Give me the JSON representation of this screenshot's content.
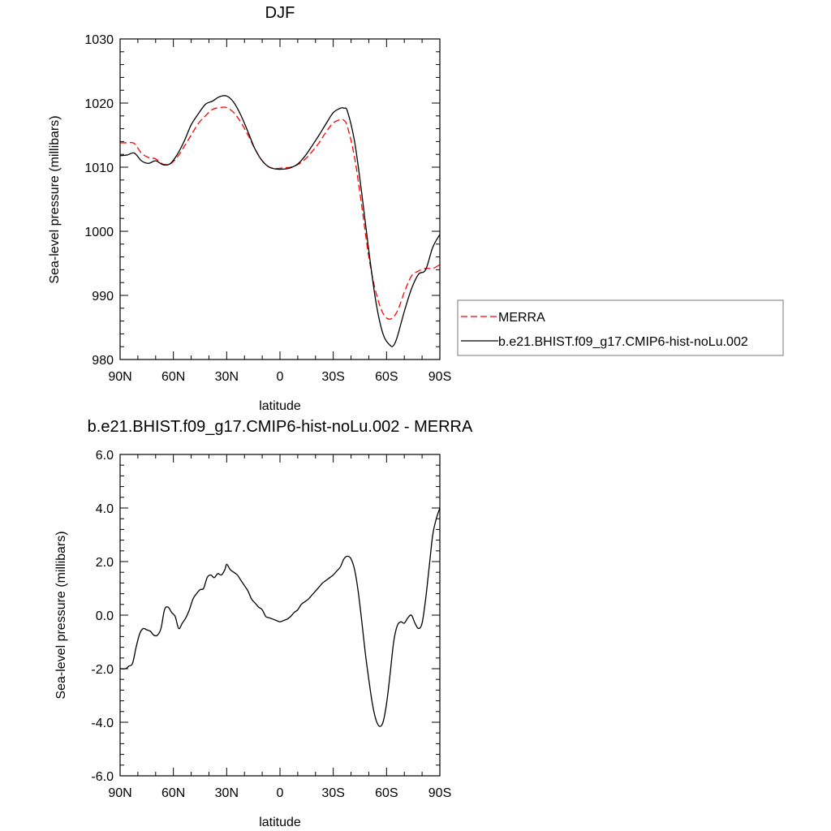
{
  "colors": {
    "model": "#000000",
    "obs": "#ff0000",
    "frame": "#000000",
    "legend_border": "#777777"
  },
  "chart_data": [
    {
      "type": "line",
      "title": "DJF",
      "xlabel": "latitude",
      "ylabel": "Sea-level pressure (millibars)",
      "xlim": [
        -90,
        90
      ],
      "ylim": [
        980,
        1030
      ],
      "x_ticks": [
        -90,
        -60,
        -30,
        0,
        30,
        60,
        90
      ],
      "x_tick_labels": [
        "90N",
        "60N",
        "30N",
        "0",
        "30S",
        "60S",
        "90S"
      ],
      "y_ticks": [
        980,
        990,
        1000,
        1010,
        1020,
        1030
      ],
      "y_tick_labels": [
        "980",
        "990",
        "1000",
        "1010",
        "1020",
        "1030"
      ],
      "grid": false,
      "legend": "right",
      "series": [
        {
          "name": "MERRA",
          "style": "dashed",
          "color": "#ff0000",
          "x": [
            -90,
            -86,
            -82,
            -78,
            -74,
            -70,
            -66,
            -62,
            -58,
            -54,
            -50,
            -46,
            -42,
            -38,
            -34,
            -30,
            -26,
            -22,
            -18,
            -14,
            -10,
            -6,
            -2,
            2,
            6,
            10,
            14,
            18,
            22,
            26,
            30,
            34,
            36,
            38,
            42,
            46,
            50,
            54,
            58,
            62,
            66,
            70,
            74,
            78,
            82,
            86,
            90
          ],
          "values": [
            1013.8,
            1013.8,
            1013.7,
            1012.2,
            1011.5,
            1011.3,
            1010.5,
            1010.5,
            1011.5,
            1013.2,
            1015.0,
            1016.8,
            1018.0,
            1019.0,
            1019.3,
            1019.3,
            1018.5,
            1017.0,
            1015.0,
            1012.8,
            1011.0,
            1010.0,
            1009.8,
            1009.9,
            1010.0,
            1010.4,
            1011.2,
            1012.4,
            1013.8,
            1015.5,
            1016.9,
            1017.4,
            1017.3,
            1016.3,
            1011.5,
            1004.0,
            996.0,
            990.5,
            987.2,
            986.3,
            987.5,
            990.5,
            993.0,
            993.8,
            994.2,
            994.2,
            994.8
          ]
        },
        {
          "name": "b.e21.BHIST.f09_g17.CMIP6-hist-noLu.002",
          "style": "solid",
          "color": "#000000",
          "x": [
            -90,
            -86,
            -82,
            -78,
            -74,
            -70,
            -66,
            -62,
            -58,
            -54,
            -50,
            -46,
            -42,
            -38,
            -34,
            -30,
            -26,
            -22,
            -18,
            -14,
            -10,
            -6,
            -2,
            2,
            6,
            10,
            14,
            18,
            22,
            26,
            30,
            34,
            36,
            38,
            42,
            46,
            50,
            54,
            58,
            62,
            64,
            66,
            70,
            74,
            78,
            82,
            86,
            90
          ],
          "values": [
            1011.8,
            1011.9,
            1012.2,
            1011.0,
            1010.6,
            1011.0,
            1010.4,
            1010.5,
            1011.9,
            1014.0,
            1016.6,
            1018.3,
            1019.8,
            1020.3,
            1021.0,
            1021.1,
            1020.1,
            1018.1,
            1015.5,
            1012.8,
            1011.0,
            1010.0,
            1009.7,
            1009.7,
            1009.9,
            1010.5,
            1011.7,
            1013.3,
            1015.0,
            1016.8,
            1018.5,
            1019.2,
            1019.2,
            1018.7,
            1014.0,
            1006.0,
            997.0,
            989.0,
            984.0,
            982.2,
            982.2,
            983.5,
            987.5,
            991.0,
            993.3,
            994.0,
            997.5,
            999.5
          ]
        }
      ]
    },
    {
      "type": "line",
      "title": "b.e21.BHIST.f09_g17.CMIP6-hist-noLu.002 - MERRA",
      "xlabel": "latitude",
      "ylabel": "Sea-level pressure (millibars)",
      "xlim": [
        -90,
        90
      ],
      "ylim": [
        -6,
        6
      ],
      "x_ticks": [
        -90,
        -60,
        -30,
        0,
        30,
        60,
        90
      ],
      "x_tick_labels": [
        "90N",
        "60N",
        "30N",
        "0",
        "30S",
        "60S",
        "90S"
      ],
      "y_ticks": [
        -6,
        -4,
        -2,
        0,
        2,
        4,
        6
      ],
      "y_tick_labels": [
        "-6.0",
        "-4.0",
        "-2.0",
        "0.0",
        "2.0",
        "4.0",
        "6.0"
      ],
      "grid": false,
      "series": [
        {
          "style": "solid",
          "color": "#000000",
          "x": [
            -90,
            -87,
            -85,
            -83,
            -81,
            -79,
            -77,
            -75,
            -73,
            -71,
            -69,
            -67,
            -65,
            -63,
            -61,
            -59,
            -57,
            -55,
            -53,
            -51,
            -49,
            -47,
            -45,
            -43,
            -41,
            -39,
            -37,
            -35,
            -33,
            -31,
            -30,
            -28,
            -26,
            -24,
            -22,
            -20,
            -18,
            -16,
            -14,
            -12,
            -10,
            -8,
            -6,
            -4,
            -2,
            0,
            2,
            4,
            6,
            8,
            10,
            12,
            14,
            16,
            18,
            20,
            22,
            24,
            26,
            28,
            30,
            32,
            34,
            36,
            38,
            40,
            42,
            44,
            46,
            48,
            50,
            52,
            54,
            56,
            58,
            60,
            62,
            64,
            66,
            68,
            70,
            72,
            74,
            76,
            78,
            80,
            82,
            84,
            86,
            88,
            90
          ],
          "values": [
            -2.0,
            -2.0,
            -1.9,
            -1.8,
            -1.2,
            -0.7,
            -0.5,
            -0.55,
            -0.6,
            -0.75,
            -0.75,
            -0.5,
            0.2,
            0.3,
            0.1,
            -0.05,
            -0.5,
            -0.3,
            -0.1,
            0.2,
            0.6,
            0.8,
            0.95,
            1.0,
            1.4,
            1.5,
            1.4,
            1.55,
            1.5,
            1.7,
            1.9,
            1.7,
            1.6,
            1.5,
            1.3,
            1.1,
            0.9,
            0.6,
            0.45,
            0.3,
            0.2,
            -0.05,
            -0.1,
            -0.15,
            -0.2,
            -0.25,
            -0.2,
            -0.15,
            -0.05,
            0.1,
            0.2,
            0.4,
            0.5,
            0.6,
            0.75,
            0.9,
            1.05,
            1.2,
            1.3,
            1.4,
            1.5,
            1.65,
            1.8,
            2.1,
            2.2,
            2.1,
            1.7,
            0.9,
            -0.2,
            -1.4,
            -2.4,
            -3.3,
            -3.9,
            -4.15,
            -4.0,
            -3.3,
            -2.2,
            -1.0,
            -0.4,
            -0.25,
            -0.3,
            -0.1,
            0.0,
            -0.3,
            -0.5,
            -0.3,
            0.6,
            1.8,
            3.0,
            3.6,
            4.0
          ]
        }
      ]
    }
  ]
}
